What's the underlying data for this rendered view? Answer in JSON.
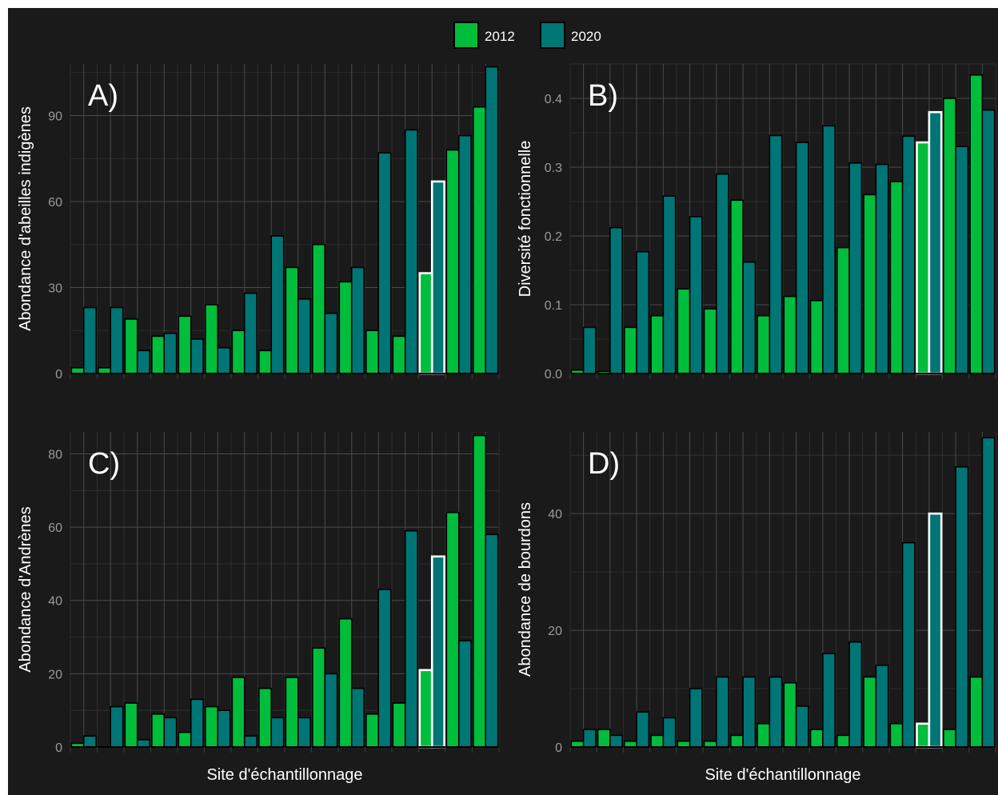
{
  "legend": {
    "position": "top",
    "items": [
      {
        "label": "2012",
        "color": "#00bd3c"
      },
      {
        "label": "2020",
        "color": "#007575"
      }
    ]
  },
  "chart_data": [
    {
      "panel": "A)",
      "type": "bar",
      "ylabel": "Abondance d'abeilles indigènes",
      "xlabel": "",
      "ylim": [
        0,
        108
      ],
      "yticks": [
        0,
        30,
        60,
        90
      ],
      "grid": true,
      "highlight_index": 13,
      "series": [
        {
          "name": "2012",
          "values": [
            2,
            2,
            19,
            13,
            20,
            24,
            15,
            8,
            37,
            45,
            32,
            15,
            13,
            35,
            78,
            93
          ]
        },
        {
          "name": "2020",
          "values": [
            23,
            23,
            8,
            14,
            12,
            9,
            28,
            48,
            26,
            21,
            37,
            77,
            85,
            67,
            83,
            107
          ]
        }
      ]
    },
    {
      "panel": "B)",
      "type": "bar",
      "ylabel": "Diversité fonctionnelle",
      "xlabel": "",
      "ylim": [
        0,
        0.45
      ],
      "yticks": [
        0.0,
        0.1,
        0.2,
        0.3,
        0.4
      ],
      "ytick_labels": [
        "0.0",
        "0.1",
        "0.2",
        "0.3",
        "0.4"
      ],
      "grid": true,
      "highlight_index": 13,
      "series": [
        {
          "name": "2012",
          "values": [
            0.005,
            0.003,
            0.067,
            0.084,
            0.123,
            0.094,
            0.252,
            0.084,
            0.112,
            0.106,
            0.183,
            0.26,
            0.279,
            0.336,
            0.4,
            0.434
          ]
        },
        {
          "name": "2020",
          "values": [
            0.067,
            0.212,
            0.177,
            0.258,
            0.228,
            0.29,
            0.162,
            0.346,
            0.336,
            0.36,
            0.306,
            0.304,
            0.345,
            0.38,
            0.33,
            0.383
          ]
        }
      ]
    },
    {
      "panel": "C)",
      "type": "bar",
      "ylabel": "Abondance d'Andrènes",
      "xlabel": "Site d'échantillonnage",
      "ylim": [
        0,
        86
      ],
      "yticks": [
        0,
        20,
        40,
        60,
        80
      ],
      "grid": true,
      "highlight_index": 13,
      "series": [
        {
          "name": "2012",
          "values": [
            1,
            0,
            12,
            9,
            4,
            11,
            19,
            16,
            19,
            27,
            35,
            9,
            12,
            21,
            64,
            85
          ]
        },
        {
          "name": "2020",
          "values": [
            3,
            11,
            2,
            8,
            13,
            10,
            3,
            8,
            8,
            20,
            16,
            43,
            59,
            52,
            29,
            58
          ]
        }
      ]
    },
    {
      "panel": "D)",
      "type": "bar",
      "ylabel": "Abondance de bourdons",
      "xlabel": "Site d'échantillonnage",
      "ylim": [
        0,
        54
      ],
      "yticks": [
        0,
        20,
        40
      ],
      "grid": true,
      "highlight_index": 13,
      "series": [
        {
          "name": "2012",
          "values": [
            1,
            3,
            1,
            2,
            1,
            1,
            2,
            4,
            11,
            3,
            2,
            12,
            4,
            4,
            3,
            12
          ]
        },
        {
          "name": "2020",
          "values": [
            3,
            2,
            6,
            5,
            10,
            12,
            12,
            12,
            7,
            16,
            18,
            14,
            35,
            40,
            48,
            53
          ]
        }
      ]
    }
  ]
}
